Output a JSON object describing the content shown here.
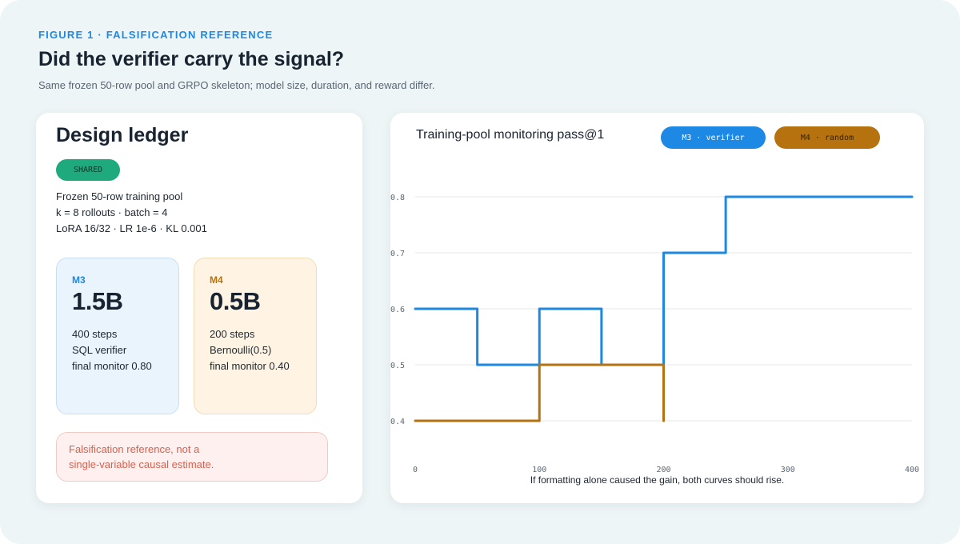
{
  "header": {
    "eyebrow": "FIGURE 1 · FALSIFICATION REFERENCE",
    "title": "Did the verifier carry the signal?",
    "subtitle": "Same frozen 50-row pool and GRPO skeleton; model size, duration, and reward differ."
  },
  "ledger": {
    "title": "Design ledger",
    "shared_badge": "SHARED",
    "shared_lines": [
      "Frozen 50-row training pool",
      "k = 8 rollouts · batch = 4",
      "LoRA 16/32 · LR 1e-6 · KL 0.001"
    ],
    "models": [
      {
        "name": "M3",
        "size": "1.5B",
        "lines": [
          "400 steps",
          "SQL verifier",
          "final monitor 0.80"
        ],
        "color": "#1e88e5"
      },
      {
        "name": "M4",
        "size": "0.5B",
        "lines": [
          "200 steps",
          "Bernoulli(0.5)",
          "final monitor 0.40"
        ],
        "color": "#b5720f"
      }
    ],
    "caveat_lines": [
      "Falsification reference, not a",
      "single-variable causal estimate."
    ]
  },
  "chart": {
    "title": "Training-pool monitoring pass@1",
    "caption": "If formatting alone caused the gain, both curves should rise."
  },
  "chart_data": {
    "type": "line",
    "title": "Training-pool monitoring pass@1",
    "xlabel": "",
    "ylabel": "",
    "xlim": [
      0,
      400
    ],
    "ylim": [
      0.35,
      0.85
    ],
    "x_ticks": [
      0,
      100,
      200,
      300,
      400
    ],
    "y_ticks": [
      0.4,
      0.5,
      0.6,
      0.7,
      0.8
    ],
    "grid": true,
    "legend_position": "top-right",
    "step": "post",
    "series": [
      {
        "name": "M3 · verifier",
        "color": "#1e88e5",
        "x": [
          0,
          50,
          100,
          150,
          200,
          250,
          400
        ],
        "y": [
          0.6,
          0.5,
          0.6,
          0.5,
          0.7,
          0.8,
          0.8
        ]
      },
      {
        "name": "M4 · random",
        "color": "#b5720f",
        "x": [
          0,
          100,
          200,
          200
        ],
        "y": [
          0.4,
          0.5,
          0.5,
          0.4
        ]
      }
    ]
  }
}
